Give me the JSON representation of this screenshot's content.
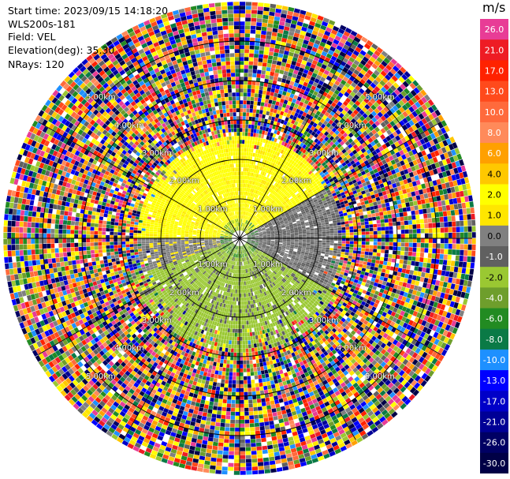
{
  "header": {
    "start_time": "Start time: 2023/09/15 14:18:20",
    "station": "WLS200s-181",
    "field": "Field: VEL",
    "elevation": "Elevation(deg): 35.30",
    "nrays": "NRays: 120"
  },
  "colorbar": {
    "unit": "m/s",
    "entries": [
      {
        "label": "26.0",
        "color": "#e83c96"
      },
      {
        "label": "21.0",
        "color": "#ee1c24"
      },
      {
        "label": "17.0",
        "color": "#ff2200"
      },
      {
        "label": "13.0",
        "color": "#ff4a1c"
      },
      {
        "label": "10.0",
        "color": "#ff6a3c"
      },
      {
        "label": "8.0",
        "color": "#ff8a5a"
      },
      {
        "label": "6.0",
        "color": "#ffa000"
      },
      {
        "label": "4.0",
        "color": "#ffc800"
      },
      {
        "label": "2.0",
        "color": "#ffff00"
      },
      {
        "label": "1.0",
        "color": "#ffe600"
      },
      {
        "label": "0.0",
        "color": "#808080"
      },
      {
        "label": "-1.0",
        "color": "#606060"
      },
      {
        "label": "-2.0",
        "color": "#9ac832"
      },
      {
        "label": "-4.0",
        "color": "#6e9e2c"
      },
      {
        "label": "-6.0",
        "color": "#228b22"
      },
      {
        "label": "-8.0",
        "color": "#0a7a46"
      },
      {
        "label": "-10.0",
        "color": "#1e90ff"
      },
      {
        "label": "-13.0",
        "color": "#0000ff"
      },
      {
        "label": "-17.0",
        "color": "#0000c8"
      },
      {
        "label": "-21.0",
        "color": "#000096"
      },
      {
        "label": "-26.0",
        "color": "#000064"
      },
      {
        "label": "-30.0",
        "color": "#000046"
      }
    ]
  },
  "chart_data": {
    "type": "heatmap",
    "projection": "polar-ppi",
    "field": "VEL",
    "units": "m/s",
    "nrays": 120,
    "range_rings_km": [
      1.0,
      2.0,
      3.0,
      4.0,
      5.0
    ],
    "ring_labels": [
      "1.00km",
      "2.00km",
      "3.00km",
      "4.00km",
      "5.00km"
    ],
    "grid": true,
    "spoke_step_deg": 30,
    "velocity_pattern": {
      "description_free": true,
      "zones": [
        {
          "from_km": 0.0,
          "to_km": 2.6,
          "bearing_from_deg": 270,
          "bearing_to_deg": 60,
          "value": 2.0
        },
        {
          "from_km": 0.0,
          "to_km": 2.6,
          "bearing_from_deg": 60,
          "bearing_to_deg": 120,
          "value": -0.5
        },
        {
          "from_km": 0.0,
          "to_km": 2.9,
          "bearing_from_deg": 120,
          "bearing_to_deg": 250,
          "value": -2.0
        },
        {
          "from_km": 0.0,
          "to_km": 2.6,
          "bearing_from_deg": 250,
          "bearing_to_deg": 270,
          "value": 0.0
        },
        {
          "from_km": 2.6,
          "to_km": 5.9,
          "bearing_from_deg": 0,
          "bearing_to_deg": 360,
          "value": "noise"
        }
      ]
    },
    "max_range_km": 5.9
  }
}
